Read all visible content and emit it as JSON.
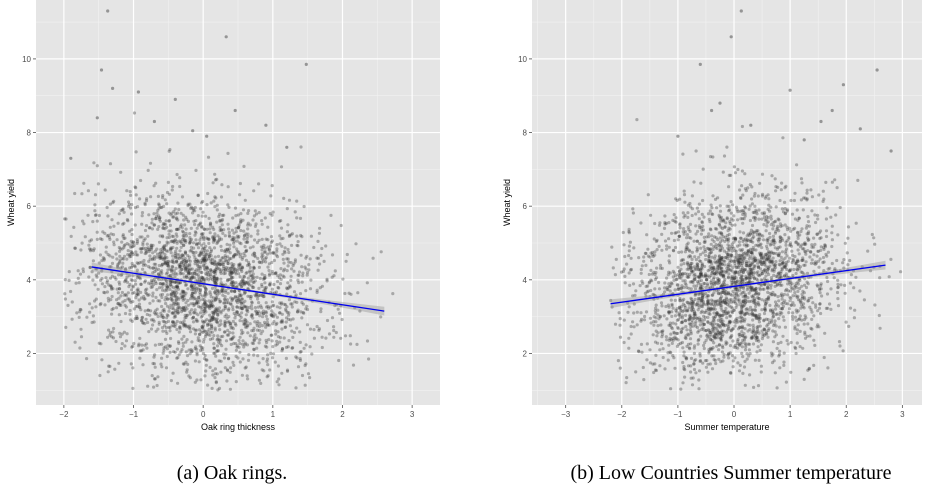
{
  "chart_data": [
    {
      "type": "scatter",
      "caption": "(a)  Oak rings.",
      "xlabel": "Oak ring thickness",
      "ylabel": "Wheat yield",
      "xlim": [
        -2.4,
        3.4
      ],
      "ylim": [
        0.6,
        11.6
      ],
      "x_ticks": [
        -2,
        -1,
        0,
        1,
        2,
        3
      ],
      "y_ticks": [
        2,
        4,
        6,
        8,
        10
      ],
      "grid": true,
      "colors": {
        "panel": "#e5e5e5",
        "grid": "#ffffff",
        "point": "#333333",
        "fit": "#0000ee"
      },
      "point_cloud": {
        "count": 2600,
        "x_center": 0.0,
        "x_spread": 0.85,
        "x_min": -2.0,
        "x_max": 3.1,
        "y_intercept": 3.9,
        "y_slope": -0.29,
        "y_spread": 1.2,
        "y_min": 1.0,
        "y_max": 9.0
      },
      "outliers": [
        [
          -1.37,
          11.3
        ],
        [
          0.33,
          10.6
        ],
        [
          1.48,
          9.85
        ],
        [
          -1.46,
          9.7
        ],
        [
          -0.93,
          9.1
        ],
        [
          -1.3,
          9.2
        ],
        [
          -0.4,
          8.9
        ],
        [
          0.46,
          8.6
        ],
        [
          -0.7,
          8.3
        ],
        [
          -1.52,
          8.4
        ],
        [
          -0.15,
          8.05
        ],
        [
          0.9,
          8.2
        ],
        [
          1.2,
          7.6
        ],
        [
          0.05,
          7.9
        ],
        [
          -1.9,
          7.3
        ]
      ],
      "fit_line": {
        "x": [
          -1.6,
          2.6
        ],
        "y": [
          4.35,
          3.15
        ]
      }
    },
    {
      "type": "scatter",
      "caption": "(b)  Low Countries Summer temperature",
      "xlabel": "Summer temperature",
      "ylabel": "Wheat yield",
      "xlim": [
        -3.6,
        3.35
      ],
      "ylim": [
        0.6,
        11.6
      ],
      "x_ticks": [
        -3,
        -2,
        -1,
        0,
        1,
        2,
        3
      ],
      "y_ticks": [
        2,
        4,
        6,
        8,
        10
      ],
      "grid": true,
      "colors": {
        "panel": "#e5e5e5",
        "grid": "#ffffff",
        "point": "#333333",
        "fit": "#0000ee"
      },
      "point_cloud": {
        "count": 2600,
        "x_center": 0.0,
        "x_spread": 0.9,
        "x_min": -2.2,
        "x_max": 3.15,
        "y_intercept": 3.9,
        "y_slope": 0.23,
        "y_spread": 1.2,
        "y_min": 1.0,
        "y_max": 9.0
      },
      "outliers": [
        [
          0.13,
          11.3
        ],
        [
          -0.05,
          10.6
        ],
        [
          -0.6,
          9.85
        ],
        [
          2.55,
          9.7
        ],
        [
          1.95,
          9.3
        ],
        [
          1.0,
          9.15
        ],
        [
          -0.25,
          8.8
        ],
        [
          -0.4,
          8.6
        ],
        [
          1.75,
          8.6
        ],
        [
          1.55,
          8.3
        ],
        [
          0.3,
          8.2
        ],
        [
          2.25,
          8.1
        ],
        [
          -1.0,
          7.9
        ],
        [
          1.25,
          7.8
        ],
        [
          2.8,
          7.5
        ]
      ],
      "fit_line": {
        "x": [
          -2.2,
          2.7
        ],
        "y": [
          3.35,
          4.4
        ]
      }
    }
  ]
}
